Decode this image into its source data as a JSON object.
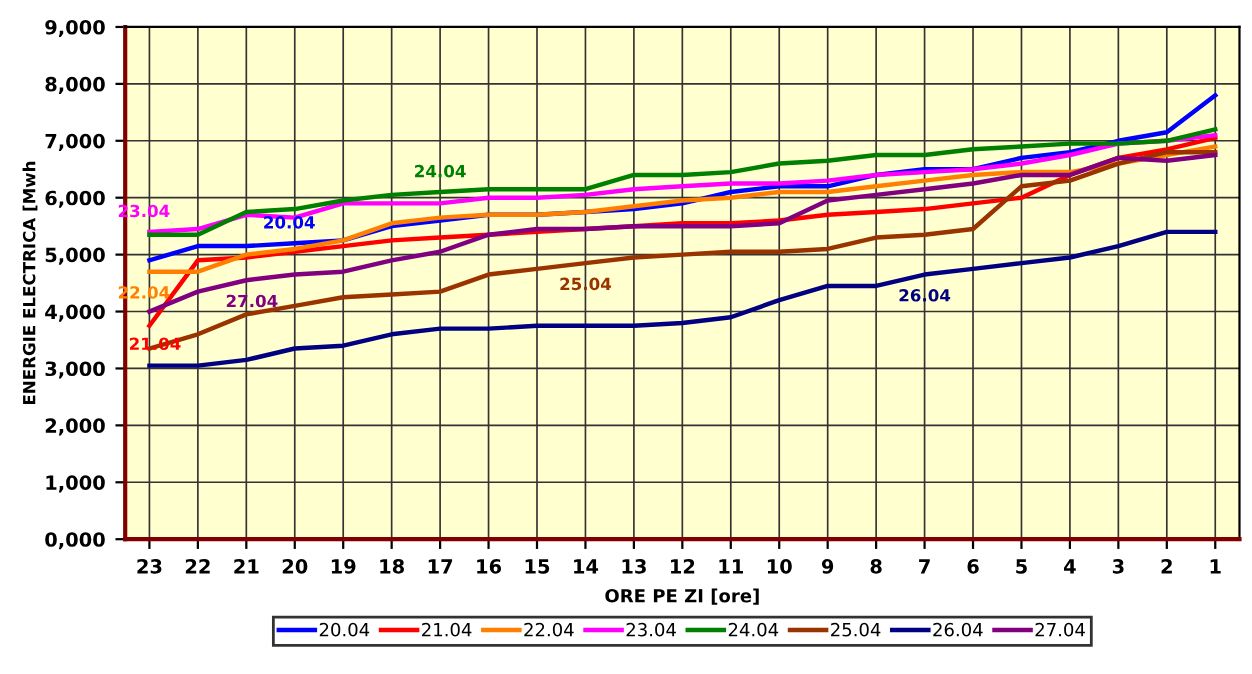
{
  "chart_data": {
    "type": "line",
    "xlabel": "ORE PE ZI [ore]",
    "ylabel": "ENERGIE ELECTRICA [Mwh",
    "categories": [
      "23",
      "22",
      "21",
      "20",
      "19",
      "18",
      "17",
      "16",
      "15",
      "14",
      "13",
      "12",
      "11",
      "10",
      "9",
      "8",
      "7",
      "6",
      "5",
      "4",
      "3",
      "2",
      "1"
    ],
    "ylim": [
      0,
      9000
    ],
    "yticks": [
      {
        "value": 0,
        "label": "0,000"
      },
      {
        "value": 1000,
        "label": "1,000"
      },
      {
        "value": 2000,
        "label": "2,000"
      },
      {
        "value": 3000,
        "label": "3,000"
      },
      {
        "value": 4000,
        "label": "4,000"
      },
      {
        "value": 5000,
        "label": "5,000"
      },
      {
        "value": 6000,
        "label": "6,000"
      },
      {
        "value": 7000,
        "label": "7,000"
      },
      {
        "value": 8000,
        "label": "8,000"
      },
      {
        "value": 9000,
        "label": "9,000"
      }
    ],
    "grid": true,
    "legend": "bottom",
    "marker": "none",
    "line_style": "solid",
    "series": [
      {
        "name": "20.04",
        "color": "#0000ff",
        "values": [
          4900,
          5150,
          5150,
          5200,
          5250,
          5500,
          5600,
          5700,
          5700,
          5750,
          5800,
          5900,
          6100,
          6200,
          6200,
          6400,
          6500,
          6500,
          6700,
          6800,
          7000,
          7150,
          7800
        ]
      },
      {
        "name": "21.04",
        "color": "#ff0000",
        "values": [
          3750,
          4900,
          4950,
          5050,
          5150,
          5250,
          5300,
          5350,
          5400,
          5450,
          5500,
          5550,
          5550,
          5600,
          5700,
          5750,
          5800,
          5900,
          6000,
          6400,
          6700,
          6850,
          7050
        ]
      },
      {
        "name": "22.04",
        "color": "#ff8000",
        "values": [
          4700,
          4700,
          5000,
          5100,
          5250,
          5550,
          5650,
          5700,
          5700,
          5750,
          5850,
          5950,
          6000,
          6100,
          6100,
          6200,
          6300,
          6400,
          6450,
          6450,
          6600,
          6750,
          6900
        ]
      },
      {
        "name": "23.04",
        "color": "#ff00ff",
        "values": [
          5400,
          5450,
          5700,
          5650,
          5900,
          5900,
          5900,
          6000,
          6000,
          6050,
          6150,
          6200,
          6250,
          6250,
          6300,
          6400,
          6450,
          6500,
          6600,
          6750,
          6950,
          7000,
          7100
        ]
      },
      {
        "name": "24.04",
        "color": "#008000",
        "values": [
          5350,
          5350,
          5750,
          5800,
          5950,
          6050,
          6100,
          6150,
          6150,
          6150,
          6400,
          6400,
          6450,
          6600,
          6650,
          6750,
          6750,
          6850,
          6900,
          6950,
          6950,
          7000,
          7200
        ]
      },
      {
        "name": "25.04",
        "color": "#993300",
        "values": [
          3350,
          3600,
          3950,
          4100,
          4250,
          4300,
          4350,
          4650,
          4750,
          4850,
          4950,
          5000,
          5050,
          5050,
          5100,
          5300,
          5350,
          5450,
          6200,
          6300,
          6600,
          6800,
          6800
        ]
      },
      {
        "name": "26.04",
        "color": "#000080",
        "values": [
          3050,
          3050,
          3150,
          3350,
          3400,
          3600,
          3700,
          3700,
          3750,
          3750,
          3750,
          3800,
          3900,
          4200,
          4450,
          4450,
          4650,
          4750,
          4850,
          4950,
          5150,
          5400,
          5400
        ]
      },
      {
        "name": "27.04",
        "color": "#800080",
        "values": [
          4000,
          4350,
          4550,
          4650,
          4700,
          4900,
          5050,
          5350,
          5450,
          5450,
          5500,
          5500,
          5500,
          5550,
          5950,
          6050,
          6150,
          6250,
          6400,
          6400,
          6700,
          6650,
          6750
        ]
      }
    ],
    "annotations": [
      {
        "text": "20.04",
        "x": "20",
        "y": 5200
      },
      {
        "text": "21.04",
        "x": "23",
        "y": 3750
      },
      {
        "text": "22.04",
        "x": "23",
        "y": 4700
      },
      {
        "text": "23.04",
        "x": "23",
        "y": 5400
      },
      {
        "text": "24.04",
        "x": "17",
        "y": 6100
      },
      {
        "text": "25.04",
        "x": "14",
        "y": 4850
      },
      {
        "text": "26.04",
        "x": "7",
        "y": 4650
      },
      {
        "text": "27.04",
        "x": "21",
        "y": 4550
      }
    ]
  }
}
